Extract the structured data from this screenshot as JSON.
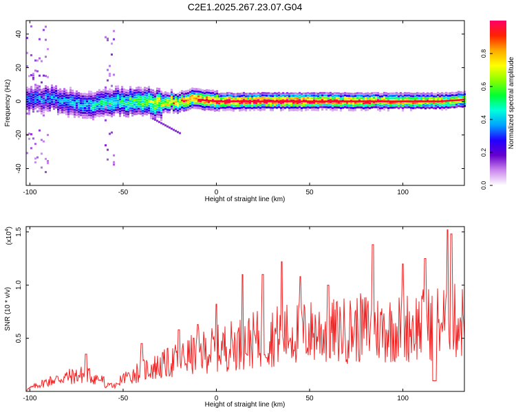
{
  "title": "C2E1.2025.267.23.07.G04",
  "chart_data": [
    {
      "type": "heatmap",
      "xlabel": "Height of straight line (km)",
      "ylabel": "Frequency (Hz)",
      "xlim": [
        -102,
        133
      ],
      "ylim": [
        -50,
        48
      ],
      "xticks": [
        -100,
        -50,
        0,
        50,
        100
      ],
      "yticks": [
        40,
        20,
        0,
        -20,
        -40
      ],
      "colorbar": {
        "label": "Normalized spectral amplitude",
        "range": [
          0,
          1
        ],
        "ticks": [
          "0.0",
          "0.2",
          "0.4",
          "0.6",
          "0.8"
        ],
        "colors": [
          "#ffffff",
          "#cc88ee",
          "#6600cc",
          "#2200ff",
          "#00a0ff",
          "#00ffdd",
          "#00ff33",
          "#88ff00",
          "#ffff00",
          "#ffaa00",
          "#ff2200",
          "#ff0066"
        ]
      },
      "ridge": {
        "x": [
          -100,
          -90,
          -80,
          -70,
          -60,
          -50,
          -40,
          -30,
          -20,
          -10,
          0,
          20,
          40,
          60,
          80,
          100,
          120,
          133
        ],
        "freq": [
          1,
          2,
          -1,
          -3,
          -1,
          0,
          -1,
          -1,
          0,
          1,
          0,
          0,
          0,
          0,
          0,
          0,
          0,
          1
        ],
        "amplitude": [
          0.3,
          0.35,
          0.35,
          0.4,
          0.45,
          0.5,
          0.55,
          0.7,
          0.8,
          0.85,
          0.9,
          0.95,
          0.95,
          0.9,
          0.85,
          0.8,
          0.75,
          0.7
        ]
      }
    },
    {
      "type": "line",
      "xlabel": "Height of straight line (km)",
      "ylabel": "SNR (10 * v/v)",
      "scale_label": "(x10",
      "scale_exp": "4",
      "xlim": [
        -102,
        133
      ],
      "ylim": [
        0,
        1.55
      ],
      "xticks": [
        -100,
        -50,
        0,
        50,
        100
      ],
      "yticks": [
        "0.5",
        "1.0",
        "1.5"
      ],
      "line_color": "#ee2222",
      "envelope": {
        "x": [
          -102,
          -95,
          -90,
          -80,
          -70,
          -60,
          -50,
          -40,
          -30,
          -20,
          -10,
          0,
          10,
          20,
          30,
          40,
          50,
          60,
          70,
          80,
          90,
          100,
          110,
          120,
          133
        ],
        "y": [
          0.02,
          0.08,
          0.12,
          0.17,
          0.2,
          0.12,
          0.15,
          0.25,
          0.3,
          0.38,
          0.45,
          0.5,
          0.55,
          0.6,
          0.65,
          0.68,
          0.7,
          0.7,
          0.72,
          0.75,
          0.73,
          0.75,
          0.78,
          0.82,
          0.82
        ]
      },
      "peaks": [
        [
          -70,
          0.35
        ],
        [
          -40,
          0.45
        ],
        [
          -20,
          0.58
        ],
        [
          -10,
          0.63
        ],
        [
          0,
          0.82
        ],
        [
          14,
          1.1
        ],
        [
          25,
          1.1
        ],
        [
          35,
          1.22
        ],
        [
          45,
          1.08
        ],
        [
          60,
          1.0
        ],
        [
          84,
          1.38
        ],
        [
          100,
          1.2
        ],
        [
          112,
          1.25
        ],
        [
          124,
          1.52
        ],
        [
          126,
          1.48
        ]
      ]
    }
  ]
}
